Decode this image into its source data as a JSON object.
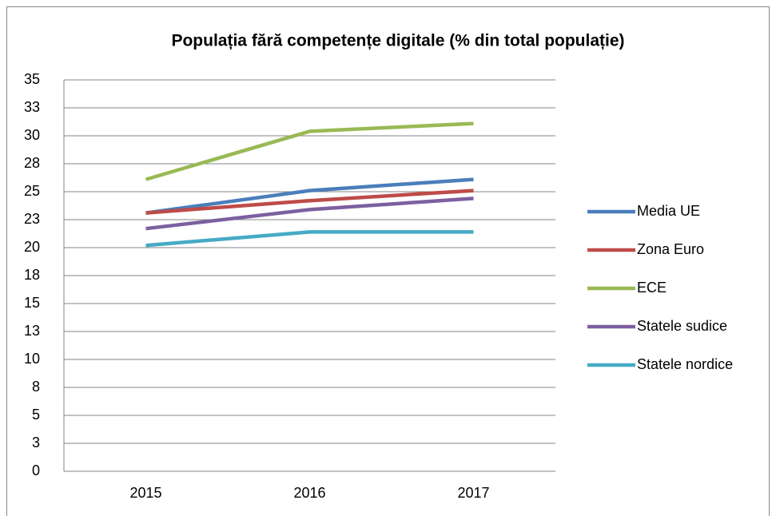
{
  "chart_data": {
    "type": "line",
    "title": "Populația fără competențe digitale (% din total populație)",
    "categories": [
      "2015",
      "2016",
      "2017"
    ],
    "series": [
      {
        "name": "Media UE",
        "color": "#4a7ebb",
        "values": [
          23.1,
          25.1,
          26.1
        ]
      },
      {
        "name": "Zona Euro",
        "color": "#be4b48",
        "values": [
          23.1,
          24.2,
          25.1
        ]
      },
      {
        "name": "ECE",
        "color": "#98b954",
        "values": [
          26.1,
          30.4,
          31.1
        ]
      },
      {
        "name": "Statele sudice",
        "color": "#7d60a0",
        "values": [
          21.7,
          23.4,
          24.4
        ]
      },
      {
        "name": "Statele nordice",
        "color": "#46aac5",
        "values": [
          20.2,
          21.4,
          21.4
        ]
      }
    ],
    "ylim": [
      0,
      35
    ],
    "yticks": [
      0,
      {
        "value": 2.5,
        "label": "3"
      },
      5,
      {
        "value": 7.5,
        "label": "8"
      },
      10,
      {
        "value": 12.5,
        "label": "13"
      },
      15,
      {
        "value": 17.5,
        "label": "18"
      },
      20,
      {
        "value": 22.5,
        "label": "23"
      },
      25,
      {
        "value": 27.5,
        "label": "28"
      },
      30,
      {
        "value": 32.5,
        "label": "33"
      },
      35
    ],
    "grid": true,
    "legend": "right"
  }
}
